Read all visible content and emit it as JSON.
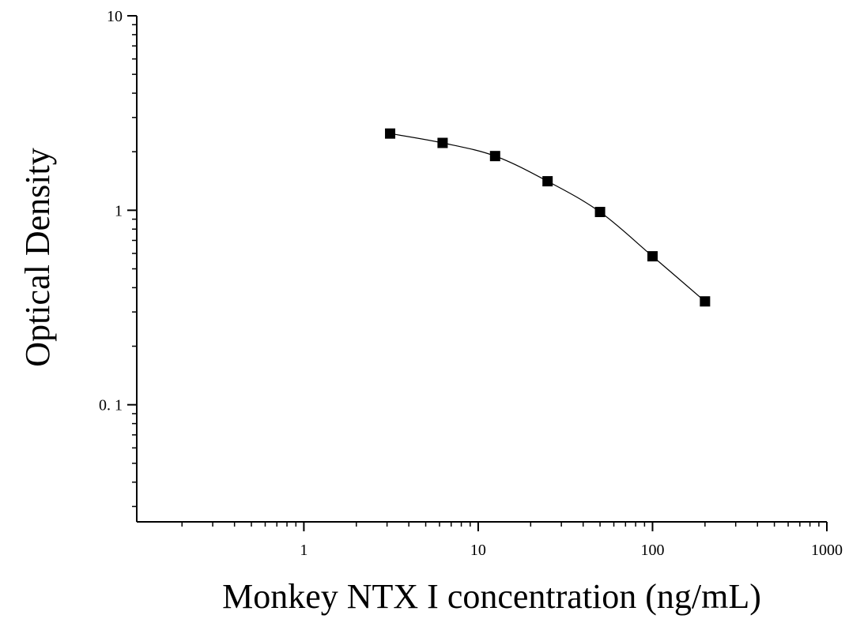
{
  "chart_data": {
    "type": "scatter",
    "title": "",
    "xlabel": "Monkey NTX I concentration (ng/mL)",
    "ylabel": "Optical Density",
    "x_scale": "log",
    "y_scale": "log",
    "xlim": [
      0.11,
      1000
    ],
    "ylim": [
      0.025,
      10
    ],
    "x_ticks": [
      {
        "value": 1,
        "label": "1"
      },
      {
        "value": 10,
        "label": "10"
      },
      {
        "value": 100,
        "label": "100"
      },
      {
        "value": 1000,
        "label": "1000"
      }
    ],
    "y_ticks": [
      {
        "value": 0.1,
        "label": "0. 1"
      },
      {
        "value": 1,
        "label": "1"
      },
      {
        "value": 10,
        "label": "10"
      }
    ],
    "grid": false,
    "legend": "none",
    "marker": "square",
    "color": "#000000",
    "series": [
      {
        "x": [
          3.125,
          6.25,
          12.5,
          25,
          50,
          100,
          200
        ],
        "y": [
          2.48,
          2.22,
          1.9,
          1.41,
          0.98,
          0.58,
          0.34
        ],
        "fit_curve": true
      }
    ]
  }
}
